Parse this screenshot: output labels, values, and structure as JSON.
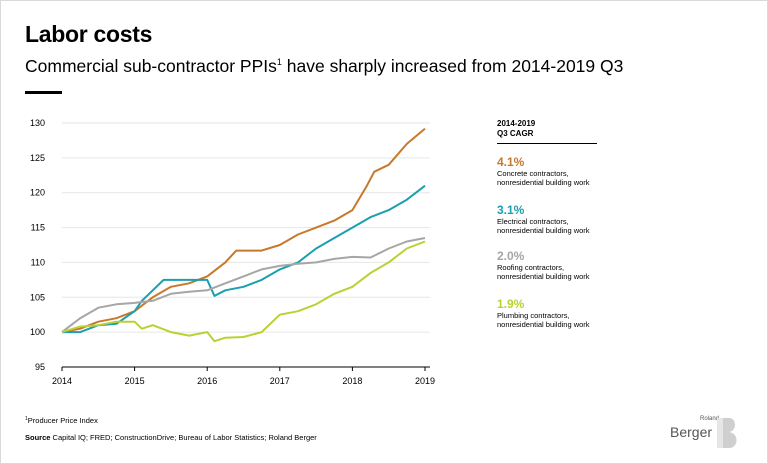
{
  "header": {
    "title": "Labor costs",
    "subtitle": "Commercial sub-contractor PPIs",
    "subtitle_sup": "1",
    "subtitle_rest": " have sharply increased from 2014-2019 Q3"
  },
  "legend": {
    "heading_line1": "2014-2019",
    "heading_line2": "Q3 CAGR",
    "items": [
      {
        "value": "4.1%",
        "line1": "Concrete contractors,",
        "line2": "nonresidential building work",
        "color": "#c8782a"
      },
      {
        "value": "3.1%",
        "line1": "Electrical contractors,",
        "line2": "nonresidential building work",
        "color": "#1a9fb0"
      },
      {
        "value": "2.0%",
        "line1": "Roofing contractors,",
        "line2": "nonresidential building work",
        "color": "#a6a6a6"
      },
      {
        "value": "1.9%",
        "line1": "Plumbing contractors,",
        "line2": "nonresidential building work",
        "color": "#bcd034"
      }
    ]
  },
  "footer": {
    "footnote_sup": "1",
    "footnote": "Producer Price Index",
    "source_label": "Source",
    "source_text": " Capital IQ; FRED; ConstructionDrive; Bureau of Labor Statistics;    Roland Berger"
  },
  "logo": {
    "small": "Roland",
    "main": "Berger",
    "mark": "B"
  },
  "chart_data": {
    "type": "line",
    "title": "",
    "xlabel": "",
    "ylabel": "",
    "xlim": [
      2014,
      2019
    ],
    "ylim": [
      95,
      130
    ],
    "yticks": [
      95,
      100,
      105,
      110,
      115,
      120,
      125,
      130
    ],
    "xticks": [
      2014,
      2015,
      2016,
      2017,
      2018,
      2019
    ],
    "series": [
      {
        "name": "Concrete contractors, nonresidential building work",
        "color": "#c8782a",
        "points": [
          [
            2014,
            100
          ],
          [
            2014.25,
            100.5
          ],
          [
            2014.5,
            101.5
          ],
          [
            2014.75,
            102
          ],
          [
            2015,
            103
          ],
          [
            2015.25,
            105
          ],
          [
            2015.5,
            106.5
          ],
          [
            2015.75,
            107
          ],
          [
            2016,
            108
          ],
          [
            2016.25,
            110
          ],
          [
            2016.4,
            111.7
          ],
          [
            2016.75,
            111.7
          ],
          [
            2017,
            112.5
          ],
          [
            2017.25,
            114
          ],
          [
            2017.5,
            115
          ],
          [
            2017.75,
            116
          ],
          [
            2018,
            117.5
          ],
          [
            2018.2,
            121
          ],
          [
            2018.3,
            123
          ],
          [
            2018.5,
            124
          ],
          [
            2018.75,
            127
          ],
          [
            2019,
            129.2
          ]
        ]
      },
      {
        "name": "Electrical contractors, nonresidential building work",
        "color": "#1a9fb0",
        "points": [
          [
            2014,
            100
          ],
          [
            2014.25,
            100
          ],
          [
            2014.5,
            101
          ],
          [
            2014.75,
            101.2
          ],
          [
            2015,
            103
          ],
          [
            2015.1,
            104.5
          ],
          [
            2015.4,
            107.5
          ],
          [
            2015.75,
            107.5
          ],
          [
            2016,
            107.5
          ],
          [
            2016.1,
            105.2
          ],
          [
            2016.25,
            106
          ],
          [
            2016.5,
            106.5
          ],
          [
            2016.75,
            107.5
          ],
          [
            2017,
            109
          ],
          [
            2017.25,
            110
          ],
          [
            2017.5,
            112
          ],
          [
            2017.75,
            113.5
          ],
          [
            2018,
            115
          ],
          [
            2018.25,
            116.5
          ],
          [
            2018.5,
            117.5
          ],
          [
            2018.75,
            119
          ],
          [
            2019,
            121
          ]
        ]
      },
      {
        "name": "Roofing contractors, nonresidential building work",
        "color": "#a6a6a6",
        "points": [
          [
            2014,
            100
          ],
          [
            2014.25,
            102
          ],
          [
            2014.5,
            103.5
          ],
          [
            2014.75,
            104
          ],
          [
            2015,
            104.2
          ],
          [
            2015.25,
            104.5
          ],
          [
            2015.5,
            105.5
          ],
          [
            2015.75,
            105.8
          ],
          [
            2016,
            106
          ],
          [
            2016.25,
            107
          ],
          [
            2016.5,
            108
          ],
          [
            2016.75,
            109
          ],
          [
            2017,
            109.5
          ],
          [
            2017.25,
            109.8
          ],
          [
            2017.5,
            110
          ],
          [
            2017.75,
            110.5
          ],
          [
            2018,
            110.8
          ],
          [
            2018.25,
            110.7
          ],
          [
            2018.5,
            112
          ],
          [
            2018.75,
            113
          ],
          [
            2019,
            113.5
          ]
        ]
      },
      {
        "name": "Plumbing contractors, nonresidential building work",
        "color": "#bcd034",
        "points": [
          [
            2014,
            100
          ],
          [
            2014.25,
            100.8
          ],
          [
            2014.5,
            101
          ],
          [
            2014.75,
            101.5
          ],
          [
            2015,
            101.5
          ],
          [
            2015.1,
            100.5
          ],
          [
            2015.25,
            101
          ],
          [
            2015.5,
            100
          ],
          [
            2015.75,
            99.5
          ],
          [
            2016,
            100
          ],
          [
            2016.1,
            98.7
          ],
          [
            2016.25,
            99.2
          ],
          [
            2016.5,
            99.3
          ],
          [
            2016.75,
            100
          ],
          [
            2017,
            102.5
          ],
          [
            2017.25,
            103
          ],
          [
            2017.5,
            104
          ],
          [
            2017.75,
            105.5
          ],
          [
            2018,
            106.5
          ],
          [
            2018.25,
            108.5
          ],
          [
            2018.5,
            110
          ],
          [
            2018.75,
            112
          ],
          [
            2019,
            113
          ]
        ]
      }
    ]
  }
}
